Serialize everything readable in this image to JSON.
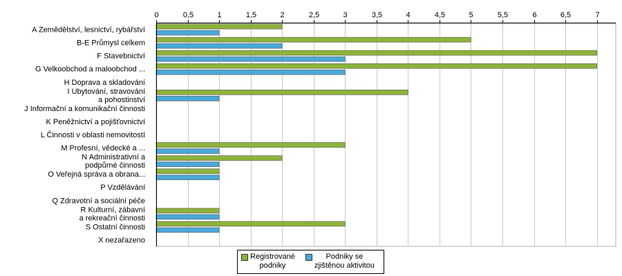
{
  "chart_data": {
    "type": "bar",
    "orientation": "horizontal",
    "categories": [
      "A Zemědělství, lesnictví, rybářství",
      "B-E Průmysl celkem",
      "F Stavebnictví",
      "G Velkoobchod a maloobchod ...",
      "H Doprava a skladování",
      "I Ubytování, stravování\na pohostinství",
      "J Informační a komunikační činnosti",
      "K Peněžnictví a pojišťovnictví",
      "L Činnosti v oblasti nemovitostí",
      "M Profesní, vědecké a ...",
      "N Administrativní a\npodpůrné činnosti",
      "O Veřejná správa a obrana...",
      "P Vzdělávání",
      "Q  Zdravotní a sociální péče",
      "R Kulturní, zábavní\na rekreační činnosti",
      "S Ostatní činnosti",
      "X nezařazeno"
    ],
    "series": [
      {
        "name": "Registrované podniky",
        "color": "#8db33a",
        "values": [
          2,
          5,
          7,
          7,
          0,
          4,
          0,
          0,
          0,
          3,
          2,
          1,
          0,
          0,
          1,
          3,
          0
        ]
      },
      {
        "name": "Podniky se zjištěnou aktivitou",
        "color": "#4aa8d8",
        "values": [
          1,
          2,
          3,
          3,
          0,
          1,
          0,
          0,
          0,
          1,
          1,
          1,
          0,
          0,
          1,
          1,
          0
        ]
      }
    ],
    "xlim": [
      0,
      7.3
    ],
    "ticks": [
      "0",
      "0,5",
      "1",
      "1,5",
      "2",
      "2,5",
      "3",
      "3,5",
      "4",
      "4,5",
      "5",
      "5,5",
      "6",
      "6,5",
      "7"
    ],
    "tick_values": [
      0,
      0.5,
      1,
      1.5,
      2,
      2.5,
      3,
      3.5,
      4,
      4.5,
      5,
      5.5,
      6,
      6.5,
      7
    ],
    "x_axis_position": "top",
    "grid": true,
    "legend_position": "bottom"
  },
  "legend": {
    "items": [
      {
        "label": "Registrované\npodniky",
        "color": "#8db33a"
      },
      {
        "label": "Podniky se\nzjištěnou aktivitou",
        "color": "#4aa8d8"
      }
    ]
  }
}
